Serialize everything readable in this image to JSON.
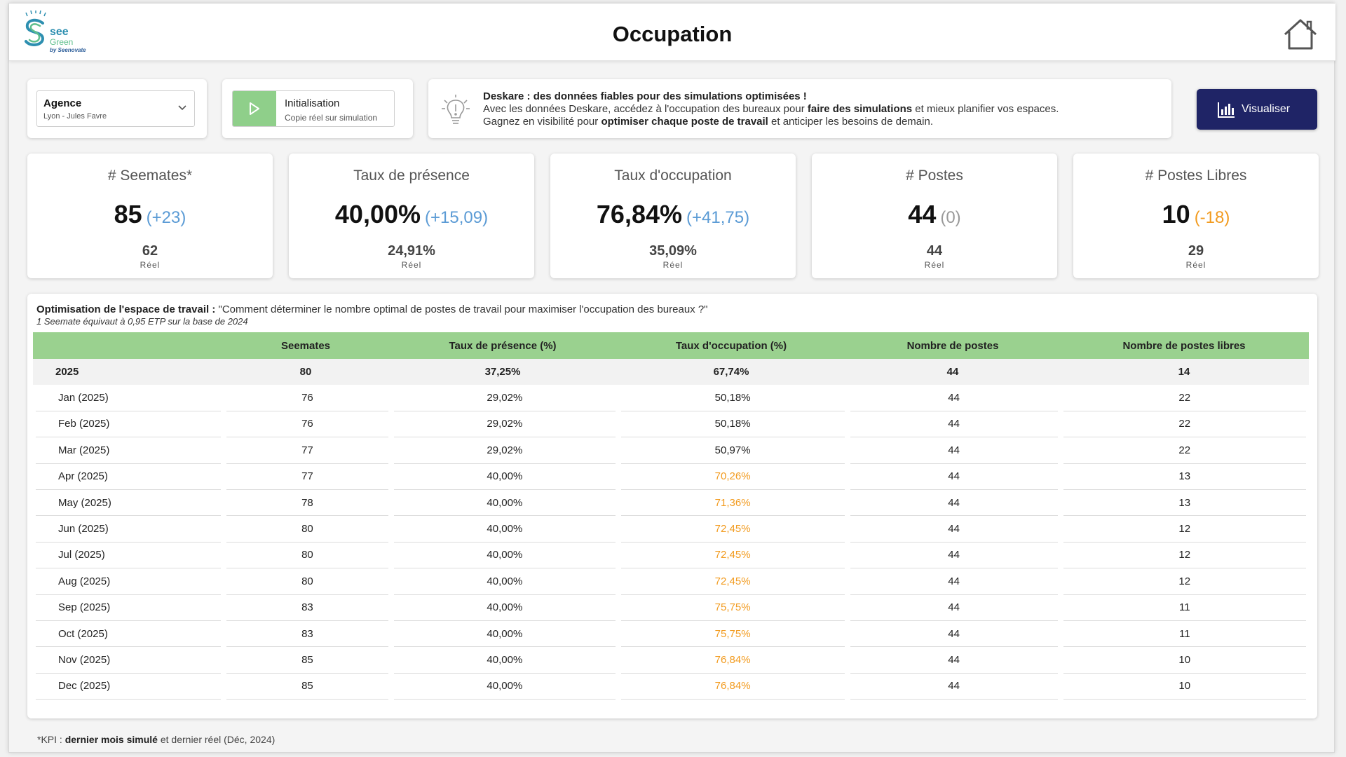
{
  "header": {
    "logo": {
      "see": "see",
      "green": "Green",
      "by": "by Seenovate"
    },
    "title": "Occupation"
  },
  "agency": {
    "label": "Agence",
    "value": "Lyon - Jules Favre"
  },
  "init": {
    "title": "Initialisation",
    "subtitle": "Copie réel sur simulation"
  },
  "info": {
    "line1_bold": "Deskare : des données fiables pour des simulations optimisées !",
    "line2_a": "Avec les données Deskare, accédez à l'occupation des bureaux pour ",
    "line2_b": "faire des simulations",
    "line2_c": " et mieux planifier vos espaces.",
    "line3_a": "Gagnez en visibilité pour ",
    "line3_b": "optimiser chaque poste de travail",
    "line3_c": " et anticiper les besoins de demain."
  },
  "visualize": {
    "label": "Visualiser"
  },
  "kpis": [
    {
      "title": "# Seemates*",
      "value": "85",
      "delta": "(+23)",
      "delta_color": "#5b9bd5",
      "real": "62",
      "real_label": "Réel"
    },
    {
      "title": "Taux de présence",
      "value": "40,00%",
      "delta": "(+15,09)",
      "delta_color": "#5b9bd5",
      "real": "24,91%",
      "real_label": "Réel"
    },
    {
      "title": "Taux d'occupation",
      "value": "76,84%",
      "delta": "(+41,75)",
      "delta_color": "#5b9bd5",
      "real": "35,09%",
      "real_label": "Réel"
    },
    {
      "title": "# Postes",
      "value": "44",
      "delta": "(0)",
      "delta_color": "#999999",
      "real": "44",
      "real_label": "Réel"
    },
    {
      "title": "# Postes Libres",
      "value": "10",
      "delta": "(-18)",
      "delta_color": "#f29b1f",
      "real": "29",
      "real_label": "Réel"
    }
  ],
  "table": {
    "title_bold": "Optimisation de l'espace de travail :",
    "title_rest": " \"Comment déterminer le nombre optimal de postes de travail pour maximiser l'occupation des bureaux ?\"",
    "subtitle": "1 Seemate équivaut à 0,95 ETP sur la base de 2024",
    "headers": [
      "",
      "Seemates",
      "Taux de présence (%)",
      "Taux d'occupation (%)",
      "Nombre de postes",
      "Nombre de postes libres"
    ],
    "year_row": [
      "2025",
      "80",
      "37,25%",
      "67,74%",
      "44",
      "14"
    ],
    "rows": [
      {
        "cells": [
          "Jan (2025)",
          "76",
          "29,02%",
          "50,18%",
          "44",
          "22"
        ],
        "warn": false
      },
      {
        "cells": [
          "Feb (2025)",
          "76",
          "29,02%",
          "50,18%",
          "44",
          "22"
        ],
        "warn": false
      },
      {
        "cells": [
          "Mar (2025)",
          "77",
          "29,02%",
          "50,97%",
          "44",
          "22"
        ],
        "warn": false
      },
      {
        "cells": [
          "Apr (2025)",
          "77",
          "40,00%",
          "70,26%",
          "44",
          "13"
        ],
        "warn": true
      },
      {
        "cells": [
          "May (2025)",
          "78",
          "40,00%",
          "71,36%",
          "44",
          "13"
        ],
        "warn": true
      },
      {
        "cells": [
          "Jun (2025)",
          "80",
          "40,00%",
          "72,45%",
          "44",
          "12"
        ],
        "warn": true
      },
      {
        "cells": [
          "Jul (2025)",
          "80",
          "40,00%",
          "72,45%",
          "44",
          "12"
        ],
        "warn": true
      },
      {
        "cells": [
          "Aug (2025)",
          "80",
          "40,00%",
          "72,45%",
          "44",
          "12"
        ],
        "warn": true
      },
      {
        "cells": [
          "Sep (2025)",
          "83",
          "40,00%",
          "75,75%",
          "44",
          "11"
        ],
        "warn": true
      },
      {
        "cells": [
          "Oct (2025)",
          "83",
          "40,00%",
          "75,75%",
          "44",
          "11"
        ],
        "warn": true
      },
      {
        "cells": [
          "Nov (2025)",
          "85",
          "40,00%",
          "76,84%",
          "44",
          "10"
        ],
        "warn": true
      },
      {
        "cells": [
          "Dec (2025)",
          "85",
          "40,00%",
          "76,84%",
          "44",
          "10"
        ],
        "warn": true
      }
    ]
  },
  "footer": {
    "prefix": "*KPI : ",
    "bold": "dernier mois simulé",
    "rest": " et dernier réel (Déc, 2024)"
  }
}
